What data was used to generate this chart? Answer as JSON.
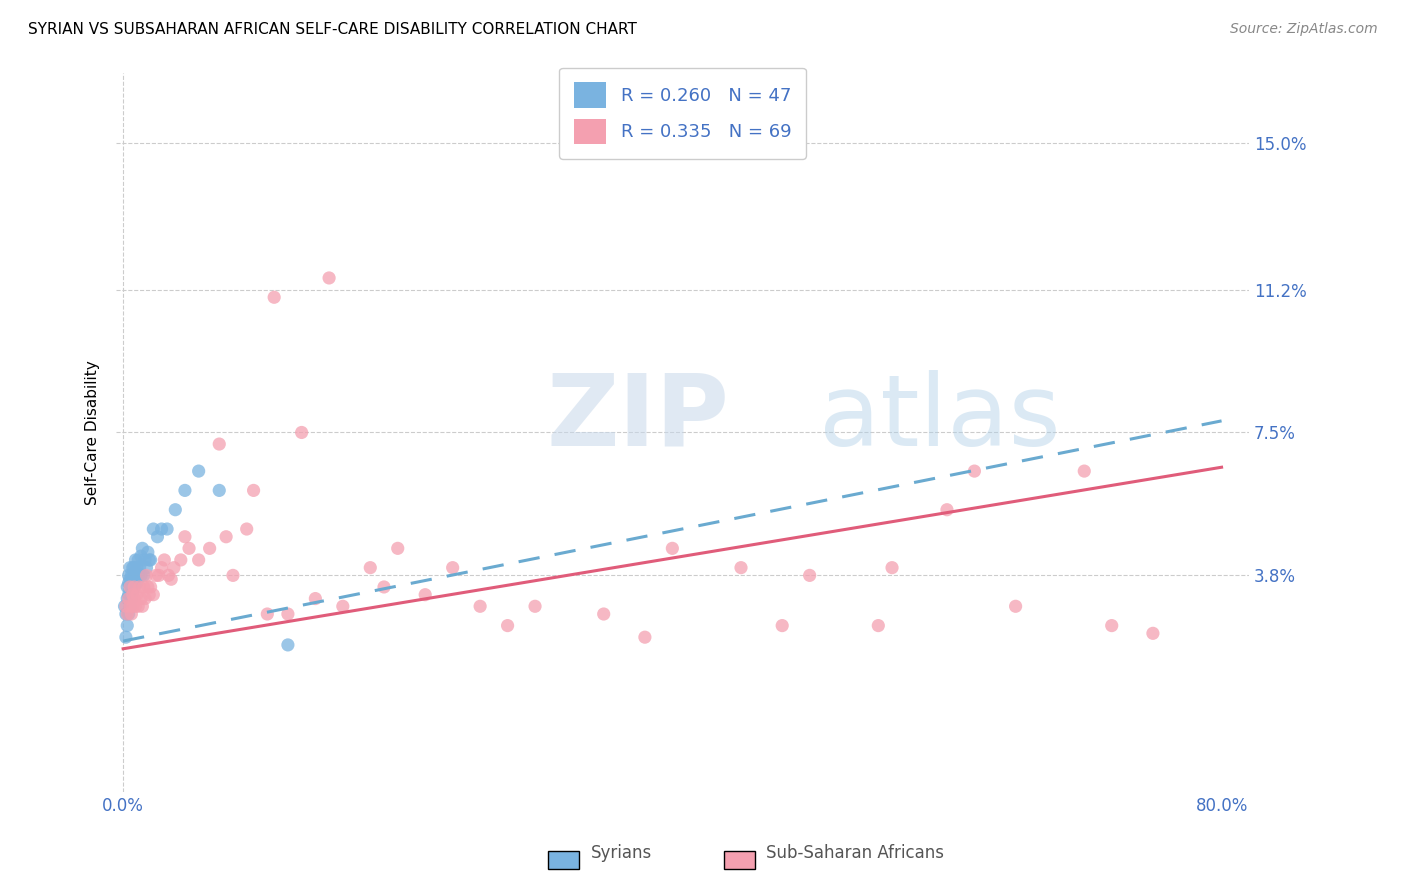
{
  "title": "SYRIAN VS SUBSAHARAN AFRICAN SELF-CARE DISABILITY CORRELATION CHART",
  "source": "Source: ZipAtlas.com",
  "ylabel": "Self-Care Disability",
  "ytick_vals": [
    0.038,
    0.075,
    0.112,
    0.15
  ],
  "ytick_labels": [
    "3.8%",
    "7.5%",
    "11.2%",
    "15.0%"
  ],
  "xlim": [
    -0.005,
    0.82
  ],
  "ylim": [
    -0.018,
    0.168
  ],
  "legend_R1": "R = 0.260",
  "legend_N1": "N = 47",
  "legend_R2": "R = 0.335",
  "legend_N2": "N = 69",
  "color_syrian": "#7ab3e0",
  "color_subsaharan": "#f4a0b0",
  "color_line_syr": "#6aaad0",
  "color_line_sub": "#e05c7a",
  "syr_line_x0": 0.0,
  "syr_line_y0": 0.021,
  "syr_line_x1": 0.8,
  "syr_line_y1": 0.078,
  "sub_line_x0": 0.0,
  "sub_line_y0": 0.019,
  "sub_line_x1": 0.8,
  "sub_line_y1": 0.066,
  "syrian_x": [
    0.001,
    0.002,
    0.002,
    0.003,
    0.003,
    0.003,
    0.004,
    0.004,
    0.004,
    0.004,
    0.005,
    0.005,
    0.005,
    0.005,
    0.006,
    0.006,
    0.006,
    0.007,
    0.007,
    0.007,
    0.008,
    0.008,
    0.009,
    0.009,
    0.01,
    0.01,
    0.011,
    0.011,
    0.012,
    0.013,
    0.013,
    0.014,
    0.015,
    0.016,
    0.017,
    0.018,
    0.019,
    0.02,
    0.022,
    0.025,
    0.028,
    0.032,
    0.038,
    0.045,
    0.055,
    0.07,
    0.12
  ],
  "syrian_y": [
    0.03,
    0.022,
    0.028,
    0.025,
    0.032,
    0.035,
    0.028,
    0.033,
    0.036,
    0.038,
    0.03,
    0.033,
    0.037,
    0.04,
    0.032,
    0.035,
    0.038,
    0.034,
    0.037,
    0.04,
    0.035,
    0.04,
    0.037,
    0.042,
    0.036,
    0.04,
    0.038,
    0.042,
    0.04,
    0.038,
    0.043,
    0.045,
    0.038,
    0.042,
    0.04,
    0.044,
    0.042,
    0.042,
    0.05,
    0.048,
    0.05,
    0.05,
    0.055,
    0.06,
    0.065,
    0.06,
    0.02
  ],
  "subsaharan_x": [
    0.002,
    0.003,
    0.004,
    0.005,
    0.005,
    0.006,
    0.007,
    0.007,
    0.008,
    0.008,
    0.009,
    0.01,
    0.011,
    0.012,
    0.013,
    0.014,
    0.015,
    0.016,
    0.017,
    0.018,
    0.019,
    0.02,
    0.022,
    0.024,
    0.026,
    0.028,
    0.03,
    0.033,
    0.037,
    0.042,
    0.048,
    0.055,
    0.063,
    0.075,
    0.09,
    0.105,
    0.12,
    0.14,
    0.16,
    0.19,
    0.22,
    0.26,
    0.3,
    0.35,
    0.4,
    0.45,
    0.5,
    0.55,
    0.6,
    0.65,
    0.7,
    0.75,
    0.13,
    0.18,
    0.24,
    0.035,
    0.045,
    0.07,
    0.08,
    0.095,
    0.11,
    0.15,
    0.2,
    0.28,
    0.38,
    0.48,
    0.56,
    0.62,
    0.72
  ],
  "subsaharan_y": [
    0.03,
    0.028,
    0.032,
    0.03,
    0.035,
    0.028,
    0.033,
    0.03,
    0.032,
    0.035,
    0.03,
    0.033,
    0.03,
    0.035,
    0.032,
    0.03,
    0.035,
    0.032,
    0.038,
    0.035,
    0.033,
    0.035,
    0.033,
    0.038,
    0.038,
    0.04,
    0.042,
    0.038,
    0.04,
    0.042,
    0.045,
    0.042,
    0.045,
    0.048,
    0.05,
    0.028,
    0.028,
    0.032,
    0.03,
    0.035,
    0.033,
    0.03,
    0.03,
    0.028,
    0.045,
    0.04,
    0.038,
    0.025,
    0.055,
    0.03,
    0.065,
    0.023,
    0.075,
    0.04,
    0.04,
    0.037,
    0.048,
    0.072,
    0.038,
    0.06,
    0.11,
    0.115,
    0.045,
    0.025,
    0.022,
    0.025,
    0.04,
    0.065,
    0.025
  ]
}
